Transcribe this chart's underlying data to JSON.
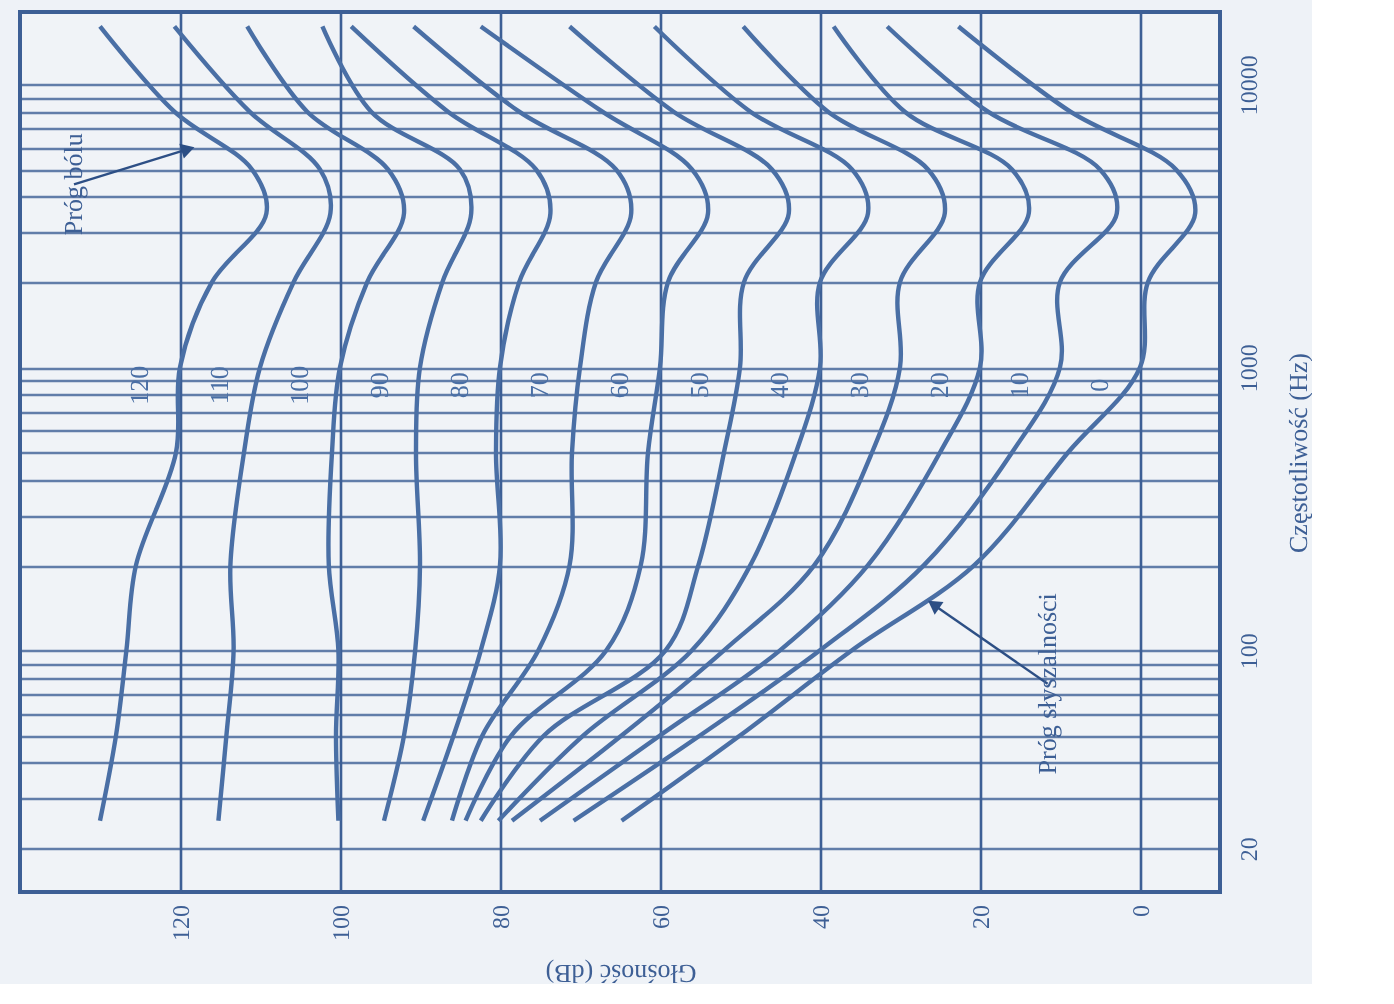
{
  "chart_data": {
    "type": "line",
    "xlabel": "Głośność (dB)",
    "ylabel": "Częstotliwość (Hz)",
    "xlim": [
      140,
      -10
    ],
    "xticks": [
      120,
      100,
      80,
      60,
      40,
      20,
      0
    ],
    "ylim": [
      14,
      18000
    ],
    "log": "y",
    "yticks": [
      20,
      {
        "value": 30,
        "label": null
      },
      {
        "value": 40,
        "label": null
      },
      {
        "value": 50,
        "label": null
      },
      {
        "value": 60,
        "label": null
      },
      {
        "value": 70,
        "label": null
      },
      {
        "value": 80,
        "label": null
      },
      {
        "value": 90,
        "label": null
      },
      100,
      {
        "value": 200,
        "label": null
      },
      {
        "value": 300,
        "label": null
      },
      {
        "value": 400,
        "label": null
      },
      {
        "value": 500,
        "label": null
      },
      {
        "value": 600,
        "label": null
      },
      {
        "value": 700,
        "label": null
      },
      {
        "value": 800,
        "label": null
      },
      {
        "value": 900,
        "label": null
      },
      1000,
      {
        "value": 2000,
        "label": null
      },
      {
        "value": 3000,
        "label": null
      },
      {
        "value": 4000,
        "label": null
      },
      {
        "value": 5000,
        "label": null
      },
      {
        "value": 6000,
        "label": null
      },
      {
        "value": 7000,
        "label": null
      },
      {
        "value": 8000,
        "label": null
      },
      {
        "value": 9000,
        "label": null
      },
      10000
    ],
    "grid": true,
    "marker": "none",
    "line_style": "solid",
    "series": [
      {
        "name": "120",
        "color": "#4a6fa5",
        "x": [
          130,
          128,
          126.7,
          125.5,
          120.5,
          120,
          116,
          109.2,
          111,
          120.7,
          130
        ],
        "values": [
          25,
          50,
          100,
          200,
          500,
          1000,
          2000,
          3500,
          5000,
          8000,
          16000
        ]
      },
      {
        "name": "110",
        "color": "#4a6fa5",
        "x": [
          115.2,
          114.2,
          113.3,
          113.7,
          112,
          110,
          105.8,
          101.2,
          102.5,
          111.3,
          120.7
        ],
        "values": [
          25,
          50,
          100,
          200,
          500,
          1000,
          2000,
          3500,
          5000,
          8000,
          16000
        ]
      },
      {
        "name": "100",
        "color": "#4a6fa5",
        "x": [
          100.2,
          100.5,
          100.2,
          101.4,
          101,
          100,
          96.6,
          92,
          94,
          104.1,
          111.6
        ],
        "values": [
          25,
          50,
          100,
          200,
          500,
          1000,
          2000,
          3500,
          5000,
          8000,
          16000
        ]
      },
      {
        "name": "90",
        "color": "#4a6fa5",
        "x": [
          94.5,
          92,
          90.6,
          90,
          90.5,
          90,
          87.2,
          83.6,
          85,
          96.1,
          102.2
        ],
        "values": [
          25,
          50,
          100,
          200,
          500,
          1000,
          2000,
          3500,
          5000,
          8000,
          16000
        ]
      },
      {
        "name": "80",
        "color": "#4a6fa5",
        "x": [
          89.6,
          85.8,
          82.4,
          80,
          80.5,
          80,
          77.6,
          73.7,
          75.5,
          86.5,
          98.6
        ],
        "values": [
          25,
          50,
          100,
          200,
          500,
          1000,
          2000,
          3500,
          5000,
          8000,
          16000
        ]
      },
      {
        "name": "70",
        "color": "#4a6fa5",
        "x": [
          86,
          82.2,
          75.2,
          71.3,
          71,
          70,
          68,
          63.6,
          65.5,
          77.6,
          90.8
        ],
        "values": [
          25,
          50,
          100,
          200,
          500,
          1000,
          2000,
          3500,
          5000,
          8000,
          16000
        ]
      },
      {
        "name": "60",
        "color": "#4a6fa5",
        "x": [
          84.3,
          78.6,
          66.7,
          62.4,
          61.5,
          60,
          59,
          54,
          56,
          67.2,
          82.4
        ],
        "values": [
          25,
          50,
          100,
          200,
          500,
          1000,
          2000,
          3500,
          5000,
          8000,
          16000
        ]
      },
      {
        "name": "50",
        "color": "#4a6fa5",
        "x": [
          82.4,
          74.5,
          59.3,
          55.2,
          52,
          50,
          49.5,
          43.9,
          46,
          58.3,
          71.3
        ],
        "values": [
          25,
          50,
          100,
          200,
          500,
          1000,
          2000,
          3500,
          5000,
          8000,
          16000
        ]
      },
      {
        "name": "40",
        "color": "#4a6fa5",
        "x": [
          80.2,
          69.6,
          56,
          48.7,
          43,
          40,
          40,
          34,
          36,
          48.7,
          60.7
        ],
        "values": [
          25,
          50,
          100,
          200,
          500,
          1000,
          2000,
          3500,
          5000,
          8000,
          16000
        ]
      },
      {
        "name": "30",
        "color": "#4a6fa5",
        "x": [
          78.5,
          64.8,
          52,
          40.7,
          33.5,
          30,
          30,
          24.4,
          26.5,
          39,
          49.6
        ],
        "values": [
          25,
          50,
          100,
          200,
          500,
          1000,
          2000,
          3500,
          5000,
          8000,
          16000
        ]
      },
      {
        "name": "20",
        "color": "#4a6fa5",
        "x": [
          75,
          60,
          45,
          34,
          25,
          20,
          20,
          13.9,
          16,
          29.4,
          38.3
        ],
        "values": [
          25,
          50,
          100,
          200,
          500,
          1000,
          2000,
          3500,
          5000,
          8000,
          16000
        ]
      },
      {
        "name": "10",
        "color": "#4a6fa5",
        "x": [
          70.8,
          55,
          40,
          27,
          16,
          10,
          10,
          2.9,
          5,
          19,
          31.6
        ],
        "values": [
          25,
          50,
          100,
          200,
          500,
          1000,
          2000,
          3500,
          5000,
          8000,
          16000
        ]
      },
      {
        "name": "0",
        "color": "#4a6fa5",
        "x": [
          64.8,
          50,
          36,
          20.7,
          9,
          0,
          -1,
          -6.9,
          -4.5,
          8.7,
          22.7
        ],
        "values": [
          25,
          50,
          100,
          200,
          500,
          1000,
          2000,
          3500,
          5000,
          8000,
          16000
        ]
      }
    ],
    "annotations": [
      {
        "text": "Próg bólu",
        "x": 119,
        "y": 5900
      },
      {
        "text": "Próg słyszalności",
        "x": 25.8,
        "y": 145
      }
    ]
  }
}
